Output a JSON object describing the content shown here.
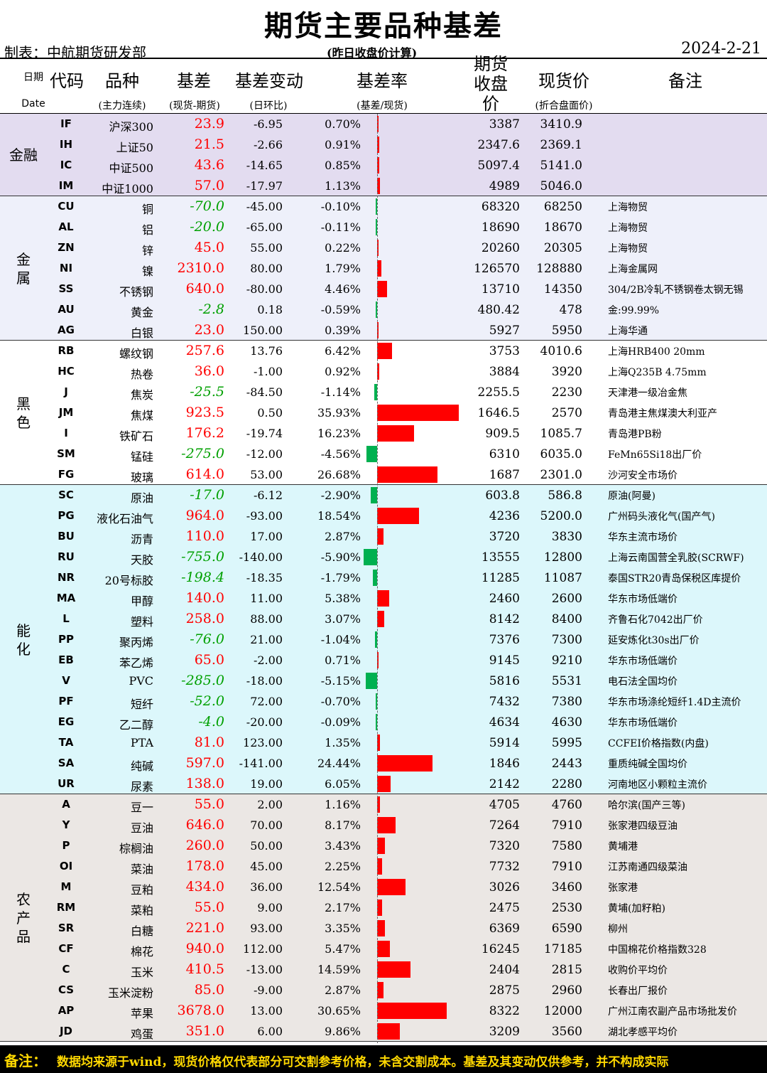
{
  "header": {
    "title": "期货主要品种基差",
    "maker": "制表：中航期货研发部",
    "calc_note": "(昨日收盘价计算)",
    "date": "2024-2-21"
  },
  "columns": {
    "date_cn": "日期",
    "date_en": "Date",
    "code": "代码",
    "name": "品种",
    "name_sub": "(主力连续)",
    "basis": "基差",
    "basis_sub": "(现货-期货)",
    "change": "基差变动",
    "change_sub": "(日环比)",
    "rate": "基差率",
    "rate_sub": "(基差/现货)",
    "futures": "期货收盘价",
    "spot": "现货价",
    "spot_sub": "(折合盘面价)",
    "note": "备注"
  },
  "groups": [
    {
      "name": "金融",
      "bg": "#e3dcf0",
      "rows": [
        {
          "code": "IF",
          "name": "沪深300",
          "basis": "23.9",
          "change": "-6.95",
          "rate": "0.70%",
          "rate_value": 0.7,
          "futures": "3387",
          "spot": "3410.9",
          "note": ""
        },
        {
          "code": "IH",
          "name": "上证50",
          "basis": "21.5",
          "change": "-2.66",
          "rate": "0.91%",
          "rate_value": 0.91,
          "futures": "2347.6",
          "spot": "2369.1",
          "note": ""
        },
        {
          "code": "IC",
          "name": "中证500",
          "basis": "43.6",
          "change": "-14.65",
          "rate": "0.85%",
          "rate_value": 0.85,
          "futures": "5097.4",
          "spot": "5141.0",
          "note": ""
        },
        {
          "code": "IM",
          "name": "中证1000",
          "basis": "57.0",
          "change": "-17.97",
          "rate": "1.13%",
          "rate_value": 1.13,
          "futures": "4989",
          "spot": "5046.0",
          "note": ""
        }
      ]
    },
    {
      "name": "金属",
      "bg": "#eef0fa",
      "rows": [
        {
          "code": "CU",
          "name": "铜",
          "basis": "-70.0",
          "change": "-45.00",
          "rate": "-0.10%",
          "rate_value": -0.1,
          "futures": "68320",
          "spot": "68250",
          "note": "上海物贸"
        },
        {
          "code": "AL",
          "name": "铝",
          "basis": "-20.0",
          "change": "-65.00",
          "rate": "-0.11%",
          "rate_value": -0.11,
          "futures": "18690",
          "spot": "18670",
          "note": "上海物贸"
        },
        {
          "code": "ZN",
          "name": "锌",
          "basis": "45.0",
          "change": "55.00",
          "rate": "0.22%",
          "rate_value": 0.22,
          "futures": "20260",
          "spot": "20305",
          "note": "上海物贸"
        },
        {
          "code": "NI",
          "name": "镍",
          "basis": "2310.0",
          "change": "80.00",
          "rate": "1.79%",
          "rate_value": 1.79,
          "futures": "126570",
          "spot": "128880",
          "note": "上海金属网"
        },
        {
          "code": "SS",
          "name": "不锈钢",
          "basis": "640.0",
          "change": "-80.00",
          "rate": "4.46%",
          "rate_value": 4.46,
          "futures": "13710",
          "spot": "14350",
          "note": "304/2B冷轧不锈钢卷太钢无锡"
        },
        {
          "code": "AU",
          "name": "黄金",
          "basis": "-2.8",
          "change": "0.18",
          "rate": "-0.59%",
          "rate_value": -0.59,
          "futures": "480.42",
          "spot": "478",
          "note": "金:99.99%"
        },
        {
          "code": "AG",
          "name": "白银",
          "basis": "23.0",
          "change": "150.00",
          "rate": "0.39%",
          "rate_value": 0.39,
          "futures": "5927",
          "spot": "5950",
          "note": "上海华通"
        }
      ]
    },
    {
      "name": "黑色",
      "bg": "#ffffff",
      "rows": [
        {
          "code": "RB",
          "name": "螺纹钢",
          "basis": "257.6",
          "change": "13.76",
          "rate": "6.42%",
          "rate_value": 6.42,
          "futures": "3753",
          "spot": "4010.6",
          "note": "上海HRB400 20mm"
        },
        {
          "code": "HC",
          "name": "热卷",
          "basis": "36.0",
          "change": "-1.00",
          "rate": "0.92%",
          "rate_value": 0.92,
          "futures": "3884",
          "spot": "3920",
          "note": "上海Q235B 4.75mm"
        },
        {
          "code": "J",
          "name": "焦炭",
          "basis": "-25.5",
          "change": "-84.50",
          "rate": "-1.14%",
          "rate_value": -1.14,
          "futures": "2255.5",
          "spot": "2230",
          "note": "天津港一级冶金焦"
        },
        {
          "code": "JM",
          "name": "焦煤",
          "basis": "923.5",
          "change": "0.50",
          "rate": "35.93%",
          "rate_value": 35.93,
          "futures": "1646.5",
          "spot": "2570",
          "note": "青岛港主焦煤澳大利亚产"
        },
        {
          "code": "I",
          "name": "铁矿石",
          "basis": "176.2",
          "change": "-19.74",
          "rate": "16.23%",
          "rate_value": 16.23,
          "futures": "909.5",
          "spot": "1085.7",
          "note": "青岛港PB粉"
        },
        {
          "code": "SM",
          "name": "锰硅",
          "basis": "-275.0",
          "change": "-12.00",
          "rate": "-4.56%",
          "rate_value": -4.56,
          "futures": "6310",
          "spot": "6035.0",
          "note": "FeMn65Si18出厂价"
        },
        {
          "code": "FG",
          "name": "玻璃",
          "basis": "614.0",
          "change": "53.00",
          "rate": "26.68%",
          "rate_value": 26.68,
          "futures": "1687",
          "spot": "2301.0",
          "note": "沙河安全市场价"
        }
      ]
    },
    {
      "name": "能化",
      "bg": "#dcf7fb",
      "rows": [
        {
          "code": "SC",
          "name": "原油",
          "basis": "-17.0",
          "change": "-6.12",
          "rate": "-2.90%",
          "rate_value": -2.9,
          "futures": "603.8",
          "spot": "586.8",
          "note": "原油(阿曼)"
        },
        {
          "code": "PG",
          "name": "液化石油气",
          "basis": "964.0",
          "change": "-93.00",
          "rate": "18.54%",
          "rate_value": 18.54,
          "futures": "4236",
          "spot": "5200.0",
          "note": "广州码头液化气(国产气)"
        },
        {
          "code": "BU",
          "name": "沥青",
          "basis": "110.0",
          "change": "17.00",
          "rate": "2.87%",
          "rate_value": 2.87,
          "futures": "3720",
          "spot": "3830",
          "note": "华东主流市场价"
        },
        {
          "code": "RU",
          "name": "天胶",
          "basis": "-755.0",
          "change": "-140.00",
          "rate": "-5.90%",
          "rate_value": -5.9,
          "futures": "13555",
          "spot": "12800",
          "note": "上海云南国营全乳胶(SCRWF)"
        },
        {
          "code": "NR",
          "name": "20号标胶",
          "basis": "-198.4",
          "change": "-18.35",
          "rate": "-1.79%",
          "rate_value": -1.79,
          "futures": "11285",
          "spot": "11087",
          "note": "泰国STR20青岛保税区库提价"
        },
        {
          "code": "MA",
          "name": "甲醇",
          "basis": "140.0",
          "change": "11.00",
          "rate": "5.38%",
          "rate_value": 5.38,
          "futures": "2460",
          "spot": "2600",
          "note": "华东市场低端价"
        },
        {
          "code": "L",
          "name": "塑料",
          "basis": "258.0",
          "change": "88.00",
          "rate": "3.07%",
          "rate_value": 3.07,
          "futures": "8142",
          "spot": "8400",
          "note": "齐鲁石化7042出厂价"
        },
        {
          "code": "PP",
          "name": "聚丙烯",
          "basis": "-76.0",
          "change": "21.00",
          "rate": "-1.04%",
          "rate_value": -1.04,
          "futures": "7376",
          "spot": "7300",
          "note": "延安炼化t30s出厂价"
        },
        {
          "code": "EB",
          "name": "苯乙烯",
          "basis": "65.0",
          "change": "-2.00",
          "rate": "0.71%",
          "rate_value": 0.71,
          "futures": "9145",
          "spot": "9210",
          "note": "华东市场低端价"
        },
        {
          "code": "V",
          "name": "PVC",
          "basis": "-285.0",
          "change": "-18.00",
          "rate": "-5.15%",
          "rate_value": -5.15,
          "futures": "5816",
          "spot": "5531",
          "note": "电石法全国均价"
        },
        {
          "code": "PF",
          "name": "短纤",
          "basis": "-52.0",
          "change": "72.00",
          "rate": "-0.70%",
          "rate_value": -0.7,
          "futures": "7432",
          "spot": "7380",
          "note": "华东市场涤纶短纤1.4D主流价"
        },
        {
          "code": "EG",
          "name": "乙二醇",
          "basis": "-4.0",
          "change": "-20.00",
          "rate": "-0.09%",
          "rate_value": -0.09,
          "futures": "4634",
          "spot": "4630",
          "note": "华东市场低端价"
        },
        {
          "code": "TA",
          "name": "PTA",
          "basis": "81.0",
          "change": "123.00",
          "rate": "1.35%",
          "rate_value": 1.35,
          "futures": "5914",
          "spot": "5995",
          "note": "CCFEI价格指数(内盘)"
        },
        {
          "code": "SA",
          "name": "纯碱",
          "basis": "597.0",
          "change": "-141.00",
          "rate": "24.44%",
          "rate_value": 24.44,
          "futures": "1846",
          "spot": "2443",
          "note": "重质纯碱全国均价"
        },
        {
          "code": "UR",
          "name": "尿素",
          "basis": "138.0",
          "change": "19.00",
          "rate": "6.05%",
          "rate_value": 6.05,
          "futures": "2142",
          "spot": "2280",
          "note": "河南地区小颗粒主流价"
        }
      ]
    },
    {
      "name": "农产品",
      "bg": "#ebe7e4",
      "rows": [
        {
          "code": "A",
          "name": "豆一",
          "basis": "55.0",
          "change": "2.00",
          "rate": "1.16%",
          "rate_value": 1.16,
          "futures": "4705",
          "spot": "4760",
          "note": "哈尔滨(国产三等)"
        },
        {
          "code": "Y",
          "name": "豆油",
          "basis": "646.0",
          "change": "70.00",
          "rate": "8.17%",
          "rate_value": 8.17,
          "futures": "7264",
          "spot": "7910",
          "note": "张家港四级豆油"
        },
        {
          "code": "P",
          "name": "棕榈油",
          "basis": "260.0",
          "change": "50.00",
          "rate": "3.43%",
          "rate_value": 3.43,
          "futures": "7320",
          "spot": "7580",
          "note": "黄埔港"
        },
        {
          "code": "OI",
          "name": "菜油",
          "basis": "178.0",
          "change": "45.00",
          "rate": "2.25%",
          "rate_value": 2.25,
          "futures": "7732",
          "spot": "7910",
          "note": "江苏南通四级菜油"
        },
        {
          "code": "M",
          "name": "豆粕",
          "basis": "434.0",
          "change": "36.00",
          "rate": "12.54%",
          "rate_value": 12.54,
          "futures": "3026",
          "spot": "3460",
          "note": "张家港"
        },
        {
          "code": "RM",
          "name": "菜粕",
          "basis": "55.0",
          "change": "9.00",
          "rate": "2.17%",
          "rate_value": 2.17,
          "futures": "2475",
          "spot": "2530",
          "note": "黄埔(加籽粕)"
        },
        {
          "code": "SR",
          "name": "白糖",
          "basis": "221.0",
          "change": "93.00",
          "rate": "3.35%",
          "rate_value": 3.35,
          "futures": "6369",
          "spot": "6590",
          "note": "柳州"
        },
        {
          "code": "CF",
          "name": "棉花",
          "basis": "940.0",
          "change": "112.00",
          "rate": "5.47%",
          "rate_value": 5.47,
          "futures": "16245",
          "spot": "17185",
          "note": "中国棉花价格指数328"
        },
        {
          "code": "C",
          "name": "玉米",
          "basis": "410.5",
          "change": "-13.00",
          "rate": "14.59%",
          "rate_value": 14.59,
          "futures": "2404",
          "spot": "2815",
          "note": "收购价平均价"
        },
        {
          "code": "CS",
          "name": "玉米淀粉",
          "basis": "85.0",
          "change": "-9.00",
          "rate": "2.87%",
          "rate_value": 2.87,
          "futures": "2875",
          "spot": "2960",
          "note": "长春出厂报价"
        },
        {
          "code": "AP",
          "name": "苹果",
          "basis": "3678.0",
          "change": "13.00",
          "rate": "30.65%",
          "rate_value": 30.65,
          "futures": "8322",
          "spot": "12000",
          "note": "广州江南农副产品市场批发价"
        },
        {
          "code": "JD",
          "name": "鸡蛋",
          "basis": "351.0",
          "change": "6.00",
          "rate": "9.86%",
          "rate_value": 9.86,
          "futures": "3209",
          "spot": "3560",
          "note": "湖北孝感平均价"
        }
      ]
    }
  ],
  "footer": {
    "label": "备注：",
    "text": "数据均来源于wind，现货价格仅代表部分可交割参考价格，未含交割成本。基差及其变动仅供参考，并不构成实际"
  },
  "colors": {
    "positive": "#ff0000",
    "negative": "#00b050"
  }
}
